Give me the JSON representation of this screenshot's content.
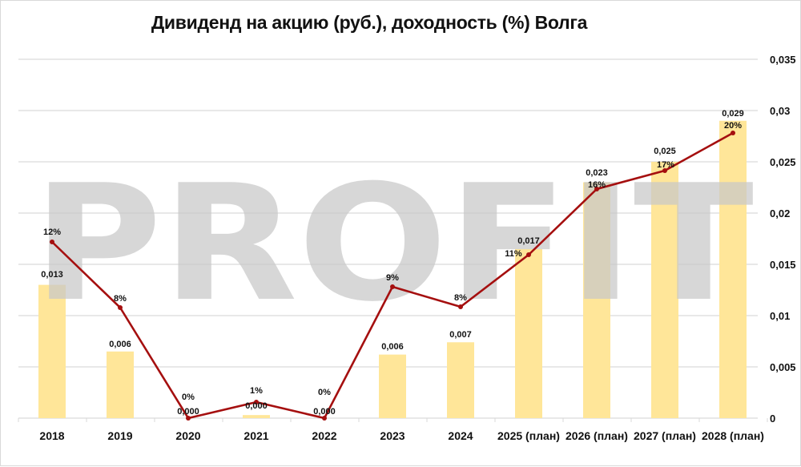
{
  "title": "Дивиденд на акцию (руб.), доходность (%) Волга",
  "watermark": "PROFIT",
  "colors": {
    "bar": "#FFE699",
    "line": "#A50F0F",
    "grid": "#d9d9d9",
    "watermark": "#c8c8c8",
    "text": "#111111"
  },
  "chart_data": {
    "type": "bar+line",
    "title": "Дивиденд на акцию (руб.), доходность (%) Волга",
    "categories": [
      "2018",
      "2019",
      "2020",
      "2021",
      "2022",
      "2023",
      "2024",
      "2025 (план)",
      "2026 (план)",
      "2027 (план)",
      "2028 (план)"
    ],
    "series": [
      {
        "name": "Дивиденд на акцию (руб.)",
        "type": "bar",
        "axis": "right",
        "values": [
          0.013,
          0.0065,
          0.0,
          0.0003,
          0.0,
          0.0062,
          0.0074,
          0.0165,
          0.023,
          0.025,
          0.029
        ],
        "labels": [
          "0,013",
          "0,006",
          "0,000",
          "0,000",
          "0,000",
          "0,006",
          "0,007",
          "0,017",
          "0,023",
          "0,025",
          "0,029"
        ]
      },
      {
        "name": "Доходность (%)",
        "type": "line",
        "axis": "secondary (hidden)",
        "values": [
          12,
          8,
          0,
          1,
          0,
          9,
          8,
          11,
          16,
          17,
          20
        ],
        "labels": [
          "12%",
          "8%",
          "0%",
          "1%",
          "0%",
          "9%",
          "8%",
          "11%",
          "16%",
          "17%",
          "20%"
        ]
      }
    ],
    "yaxis": {
      "position": "right",
      "ticks": [
        "0",
        "0,005",
        "0,01",
        "0,015",
        "0,02",
        "0,025",
        "0,03",
        "0,035"
      ],
      "ylim": [
        0,
        0.035
      ]
    },
    "grid": true,
    "legend": "none"
  }
}
